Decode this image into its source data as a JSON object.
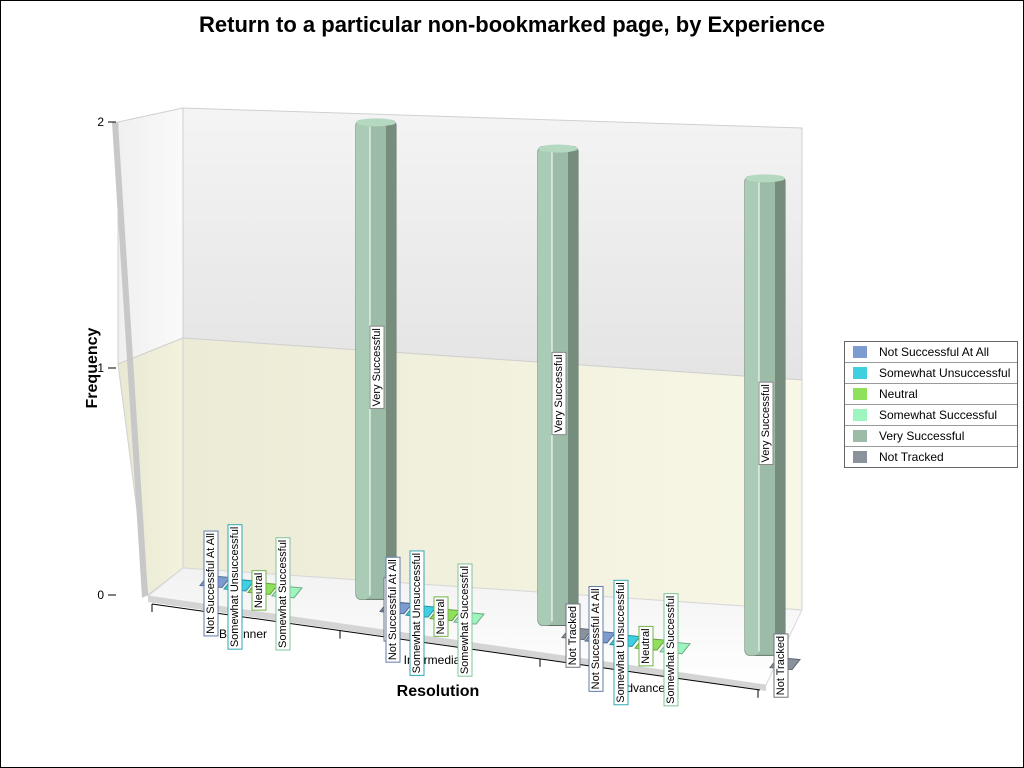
{
  "chart_data": {
    "type": "bar",
    "title": "Return to a particular non-bookmarked page, by Experience",
    "xlabel": "Resolution",
    "ylabel": "Frequency",
    "categories": [
      "Beginner",
      "Intermediate",
      "Advanced"
    ],
    "yticks": [
      "0",
      "1",
      "2"
    ],
    "ylim": [
      0,
      2
    ],
    "grid": true,
    "legend_position": "right",
    "three_d": true,
    "series": [
      {
        "name": "Not Successful At All",
        "color": "#7b9bd1",
        "values": [
          0,
          0,
          0
        ]
      },
      {
        "name": "Somewhat Unsuccessful",
        "color": "#3ecfe0",
        "values": [
          0,
          0,
          0
        ]
      },
      {
        "name": "Neutral",
        "color": "#8fe05a",
        "values": [
          0,
          0,
          0
        ]
      },
      {
        "name": "Somewhat Successful",
        "color": "#9ff5c0",
        "values": [
          0,
          0,
          0
        ]
      },
      {
        "name": "Very Successful",
        "color": "#9dbca8",
        "values": [
          2,
          2,
          2
        ]
      },
      {
        "name": "Not Tracked",
        "color": "#8a929c",
        "values": [
          0,
          0,
          0
        ]
      }
    ]
  }
}
